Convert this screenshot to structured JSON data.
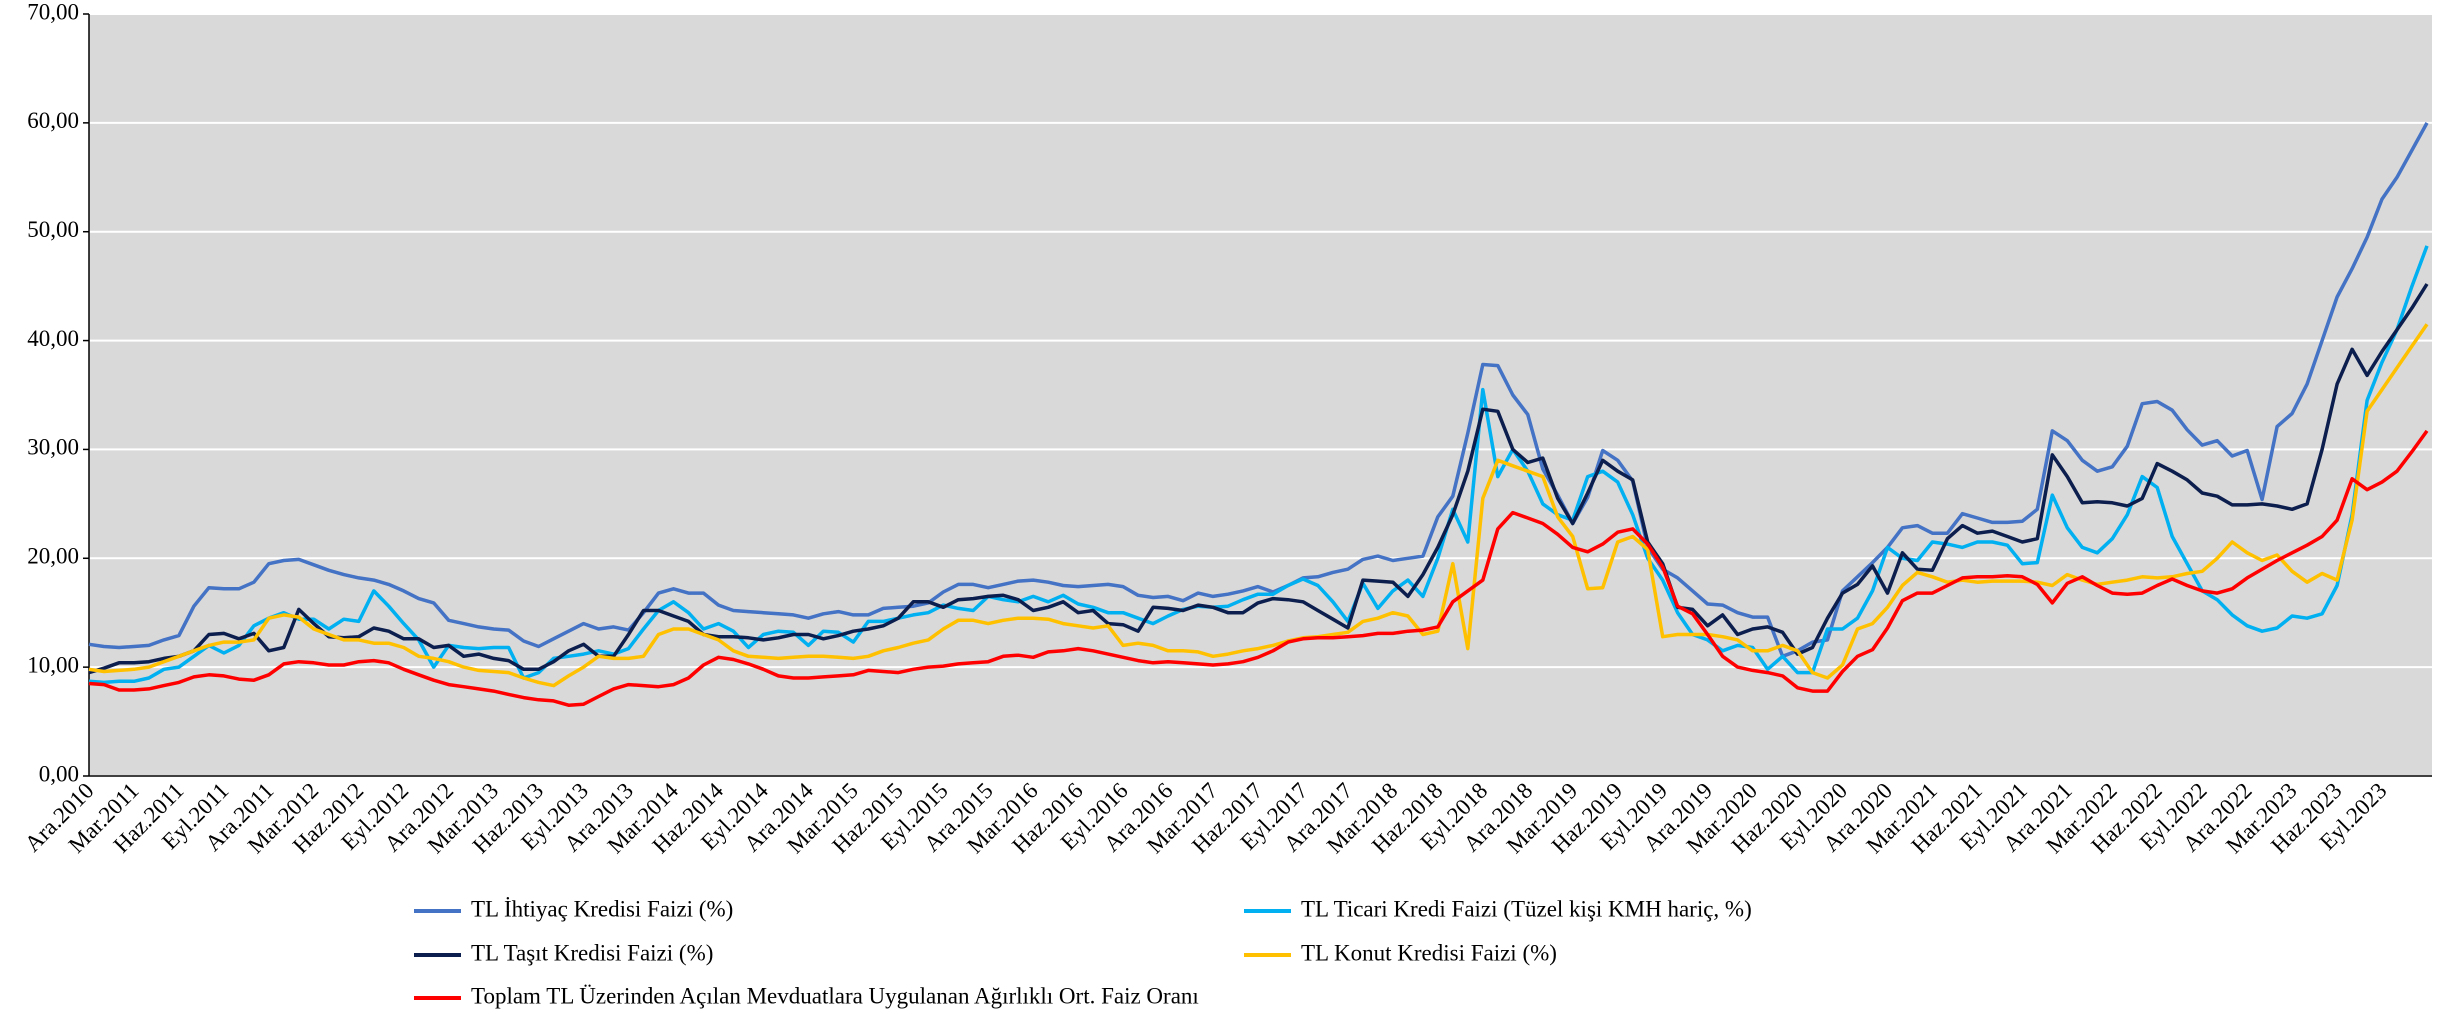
{
  "chart_data": {
    "type": "line",
    "categories": [
      "Ara.2010",
      null,
      null,
      "Mar.2011",
      null,
      null,
      "Haz.2011",
      null,
      null,
      "Eyl.2011",
      null,
      null,
      "Ara.2011",
      null,
      null,
      "Mar.2012",
      null,
      null,
      "Haz.2012",
      null,
      null,
      "Eyl.2012",
      null,
      null,
      "Ara.2012",
      null,
      null,
      "Mar.2013",
      null,
      null,
      "Haz.2013",
      null,
      null,
      "Eyl.2013",
      null,
      null,
      "Ara.2013",
      null,
      null,
      "Mar.2014",
      null,
      null,
      "Haz.2014",
      null,
      null,
      "Eyl.2014",
      null,
      null,
      "Ara.2014",
      null,
      null,
      "Mar.2015",
      null,
      null,
      "Haz.2015",
      null,
      null,
      "Eyl.2015",
      null,
      null,
      "Ara.2015",
      null,
      null,
      "Mar.2016",
      null,
      null,
      "Haz.2016",
      null,
      null,
      "Eyl.2016",
      null,
      null,
      "Ara.2016",
      null,
      null,
      "Mar.2017",
      null,
      null,
      "Haz.2017",
      null,
      null,
      "Eyl.2017",
      null,
      null,
      "Ara.2017",
      null,
      null,
      "Mar.2018",
      null,
      null,
      "Haz.2018",
      null,
      null,
      "Eyl.2018",
      null,
      null,
      "Ara.2018",
      null,
      null,
      "Mar.2019",
      null,
      null,
      "Haz.2019",
      null,
      null,
      "Eyl.2019",
      null,
      null,
      "Ara.2019",
      null,
      null,
      "Mar.2020",
      null,
      null,
      "Haz.2020",
      null,
      null,
      "Eyl.2020",
      null,
      null,
      "Ara.2020",
      null,
      null,
      "Mar.2021",
      null,
      null,
      "Haz.2021",
      null,
      null,
      "Eyl.2021",
      null,
      null,
      "Ara.2021",
      null,
      null,
      "Mar.2022",
      null,
      null,
      "Haz.2022",
      null,
      null,
      "Eyl.2022",
      null,
      null,
      "Ara.2022",
      null,
      null,
      "Mar.2023",
      null,
      null,
      "Haz.2023",
      null,
      null,
      "Eyl.2023",
      null,
      null,
      null
    ],
    "series": [
      {
        "name": "TL İhtiyaç Kredisi Faizi (%)",
        "color": "#4472C4",
        "values": [
          12.1,
          11.9,
          11.8,
          11.9,
          12.0,
          12.5,
          12.9,
          15.6,
          17.3,
          17.2,
          17.2,
          17.8,
          19.5,
          19.8,
          19.9,
          19.4,
          18.9,
          18.5,
          18.2,
          18.0,
          17.6,
          17.0,
          16.3,
          15.9,
          14.3,
          14.0,
          13.7,
          13.5,
          13.4,
          12.4,
          11.9,
          12.6,
          13.3,
          14.0,
          13.5,
          13.7,
          13.4,
          15.0,
          16.8,
          17.2,
          16.8,
          16.8,
          15.7,
          15.2,
          15.1,
          15.0,
          14.9,
          14.8,
          14.5,
          14.9,
          15.1,
          14.8,
          14.8,
          15.4,
          15.5,
          15.6,
          15.9,
          16.9,
          17.6,
          17.6,
          17.3,
          17.6,
          17.9,
          18.0,
          17.8,
          17.5,
          17.4,
          17.5,
          17.6,
          17.4,
          16.6,
          16.4,
          16.5,
          16.1,
          16.8,
          16.5,
          16.7,
          17.0,
          17.4,
          16.9,
          17.5,
          18.2,
          18.3,
          18.7,
          19.0,
          19.9,
          20.2,
          19.8,
          20.0,
          20.2,
          23.8,
          25.7,
          31.5,
          37.8,
          37.7,
          35.0,
          33.2,
          28.2,
          25.8,
          23.2,
          25.6,
          29.9,
          29.0,
          27.1,
          21.0,
          19.0,
          18.2,
          17.0,
          15.8,
          15.7,
          15.0,
          14.6,
          14.6,
          11.0,
          11.5,
          12.3,
          12.5,
          17.0,
          18.3,
          19.6,
          21.0,
          22.8,
          23.0,
          22.3,
          22.3,
          24.1,
          23.7,
          23.3,
          23.3,
          23.4,
          24.5,
          31.7,
          30.8,
          29.0,
          28.0,
          28.4,
          30.3,
          34.2,
          34.4,
          33.6,
          31.8,
          30.4,
          30.8,
          29.4,
          29.9,
          25.4,
          32.1,
          33.3,
          36.0,
          40.0,
          44.0,
          46.6,
          49.5,
          53.0,
          55.0,
          57.5,
          60.0
        ]
      },
      {
        "name": "TL Ticari Kredi Faizi (Tüzel kişi KMH hariç, %)",
        "color": "#00B0F0",
        "values": [
          8.7,
          8.6,
          8.7,
          8.7,
          9.0,
          9.8,
          10.0,
          11.0,
          12.0,
          11.3,
          12.0,
          13.8,
          14.5,
          15.0,
          14.4,
          14.4,
          13.5,
          14.4,
          14.2,
          17.0,
          15.6,
          14.0,
          12.5,
          10.0,
          12.0,
          11.8,
          11.7,
          11.8,
          11.8,
          9.0,
          9.5,
          10.8,
          11.0,
          11.2,
          11.5,
          11.2,
          11.7,
          13.5,
          15.2,
          16.0,
          15.0,
          13.5,
          14.0,
          13.3,
          11.8,
          13.0,
          13.3,
          13.2,
          12.0,
          13.3,
          13.2,
          12.3,
          14.2,
          14.2,
          14.5,
          14.8,
          15.0,
          15.7,
          15.4,
          15.2,
          16.5,
          16.2,
          16.0,
          16.5,
          16.0,
          16.6,
          15.8,
          15.5,
          15.0,
          15.0,
          14.5,
          14.0,
          14.7,
          15.3,
          15.6,
          15.5,
          15.6,
          16.2,
          16.7,
          16.7,
          17.5,
          18.1,
          17.5,
          16.0,
          14.2,
          17.7,
          15.4,
          17.0,
          18.0,
          16.5,
          20.0,
          24.5,
          21.5,
          35.5,
          27.5,
          30.0,
          28.0,
          25.0,
          24.0,
          23.5,
          27.5,
          28.0,
          27.0,
          24.0,
          20.0,
          18.0,
          15.0,
          13.0,
          12.5,
          11.5,
          12.0,
          11.8,
          9.8,
          11.0,
          9.5,
          9.5,
          13.5,
          13.5,
          14.5,
          17.0,
          21.0,
          20.0,
          19.8,
          21.5,
          21.3,
          21.0,
          21.5,
          21.5,
          21.2,
          19.5,
          19.6,
          25.8,
          22.8,
          21.0,
          20.5,
          21.8,
          24.0,
          27.5,
          26.5,
          22.0,
          19.5,
          17.0,
          16.2,
          14.8,
          13.8,
          13.3,
          13.6,
          14.7,
          14.5,
          14.9,
          17.5,
          24.0,
          34.5,
          38.0,
          41.0,
          45.0,
          48.7
        ]
      },
      {
        "name": "TL Taşıt Kredisi Faizi (%)",
        "color": "#0C1E4D",
        "values": [
          9.5,
          9.9,
          10.4,
          10.4,
          10.5,
          10.8,
          11.0,
          11.5,
          13.0,
          13.1,
          12.6,
          13.1,
          11.5,
          11.8,
          15.3,
          14.0,
          12.8,
          12.7,
          12.8,
          13.6,
          13.3,
          12.6,
          12.6,
          11.8,
          12.0,
          11.0,
          11.2,
          10.8,
          10.6,
          9.8,
          9.8,
          10.5,
          11.5,
          12.1,
          11.0,
          11.0,
          13.0,
          15.2,
          15.2,
          14.7,
          14.2,
          13.0,
          12.8,
          12.8,
          12.7,
          12.5,
          12.7,
          13.0,
          13.0,
          12.6,
          12.9,
          13.3,
          13.5,
          13.8,
          14.5,
          16.0,
          16.0,
          15.5,
          16.2,
          16.3,
          16.5,
          16.6,
          16.2,
          15.2,
          15.5,
          16.0,
          15.0,
          15.2,
          14.0,
          13.9,
          13.3,
          15.5,
          15.4,
          15.2,
          15.7,
          15.5,
          15.0,
          15.0,
          15.9,
          16.3,
          16.2,
          16.0,
          15.2,
          14.4,
          13.6,
          18.0,
          17.9,
          17.8,
          16.5,
          18.5,
          21.0,
          24.0,
          28.0,
          33.7,
          33.5,
          30.0,
          28.8,
          29.2,
          25.5,
          23.2,
          26.0,
          29.0,
          28.0,
          27.2,
          21.5,
          19.5,
          15.5,
          15.3,
          13.8,
          14.8,
          13.0,
          13.5,
          13.7,
          13.2,
          11.2,
          11.8,
          14.5,
          16.8,
          17.6,
          19.3,
          16.8,
          20.5,
          19.0,
          18.9,
          21.8,
          23.0,
          22.3,
          22.5,
          22.0,
          21.5,
          21.8,
          29.5,
          27.5,
          25.1,
          25.2,
          25.1,
          24.8,
          25.5,
          28.7,
          28.0,
          27.2,
          26.0,
          25.7,
          24.9,
          24.9,
          25.0,
          24.8,
          24.5,
          25.0,
          30.0,
          36.0,
          39.2,
          36.8,
          39.0,
          41.0,
          43.0,
          45.2
        ]
      },
      {
        "name": "TL Konut Kredisi Faizi (%)",
        "color": "#FFC000",
        "values": [
          9.8,
          9.6,
          9.7,
          9.8,
          10.0,
          10.5,
          11.0,
          11.5,
          12.0,
          12.3,
          12.3,
          12.5,
          14.5,
          14.8,
          14.6,
          13.5,
          13.0,
          12.5,
          12.5,
          12.2,
          12.2,
          11.8,
          11.0,
          10.8,
          10.5,
          10.0,
          9.7,
          9.6,
          9.5,
          9.0,
          8.6,
          8.3,
          9.2,
          10.0,
          11.0,
          10.8,
          10.8,
          11.0,
          13.0,
          13.5,
          13.5,
          13.0,
          12.5,
          11.5,
          11.0,
          10.9,
          10.8,
          10.9,
          11.0,
          11.0,
          10.9,
          10.8,
          11.0,
          11.5,
          11.8,
          12.2,
          12.5,
          13.5,
          14.3,
          14.3,
          14.0,
          14.3,
          14.5,
          14.5,
          14.4,
          14.0,
          13.8,
          13.6,
          13.8,
          12.0,
          12.2,
          12.0,
          11.5,
          11.5,
          11.4,
          11.0,
          11.2,
          11.5,
          11.7,
          12.0,
          12.4,
          12.7,
          12.8,
          13.0,
          13.2,
          14.2,
          14.5,
          15.0,
          14.7,
          13.0,
          13.3,
          19.5,
          11.7,
          25.5,
          29.0,
          28.5,
          28.0,
          27.5,
          23.8,
          22.0,
          17.2,
          17.3,
          21.5,
          22.0,
          20.8,
          12.8,
          13.0,
          13.0,
          13.0,
          12.8,
          12.5,
          11.5,
          11.5,
          12.0,
          11.5,
          9.5,
          9.0,
          10.2,
          13.5,
          14.0,
          15.5,
          17.5,
          18.7,
          18.3,
          17.8,
          18.0,
          17.8,
          17.9,
          17.9,
          17.9,
          17.8,
          17.5,
          18.5,
          18.0,
          17.6,
          17.8,
          18.0,
          18.3,
          18.2,
          18.3,
          18.6,
          18.8,
          20.0,
          21.5,
          20.5,
          19.8,
          20.3,
          18.8,
          17.8,
          18.6,
          18.0,
          23.5,
          33.5,
          35.5,
          37.5,
          39.5,
          41.5
        ]
      },
      {
        "name": "Toplam TL Üzerinden Açılan Mevduatlara Uygulanan Ağırlıklı Ort. Faiz Oranı",
        "color": "#FF0000",
        "values": [
          8.5,
          8.4,
          7.9,
          7.9,
          8.0,
          8.3,
          8.6,
          9.1,
          9.3,
          9.2,
          8.9,
          8.8,
          9.3,
          10.3,
          10.5,
          10.4,
          10.2,
          10.2,
          10.5,
          10.6,
          10.4,
          9.8,
          9.3,
          8.8,
          8.4,
          8.2,
          8.0,
          7.8,
          7.5,
          7.2,
          7.0,
          6.9,
          6.5,
          6.6,
          7.3,
          8.0,
          8.4,
          8.3,
          8.2,
          8.4,
          9.0,
          10.2,
          10.9,
          10.7,
          10.3,
          9.8,
          9.2,
          9.0,
          9.0,
          9.1,
          9.2,
          9.3,
          9.7,
          9.6,
          9.5,
          9.8,
          10.0,
          10.1,
          10.3,
          10.4,
          10.5,
          11.0,
          11.1,
          10.9,
          11.4,
          11.5,
          11.7,
          11.5,
          11.2,
          10.9,
          10.6,
          10.4,
          10.5,
          10.4,
          10.3,
          10.2,
          10.3,
          10.5,
          10.9,
          11.5,
          12.3,
          12.6,
          12.7,
          12.7,
          12.8,
          12.9,
          13.1,
          13.1,
          13.3,
          13.4,
          13.7,
          16.0,
          17.0,
          18.0,
          22.7,
          24.2,
          23.7,
          23.2,
          22.2,
          21.0,
          20.6,
          21.3,
          22.4,
          22.7,
          21.3,
          19.2,
          15.6,
          14.9,
          13.0,
          11.0,
          10.0,
          9.7,
          9.5,
          9.2,
          8.1,
          7.8,
          7.8,
          9.6,
          11.0,
          11.6,
          13.6,
          16.1,
          16.8,
          16.8,
          17.5,
          18.2,
          18.3,
          18.3,
          18.4,
          18.3,
          17.6,
          15.9,
          17.7,
          18.3,
          17.5,
          16.8,
          16.7,
          16.8,
          17.5,
          18.1,
          17.5,
          17.0,
          16.8,
          17.2,
          18.2,
          19.0,
          19.8,
          20.5,
          21.2,
          22.0,
          23.5,
          27.3,
          26.3,
          27.0,
          28.0,
          29.8,
          31.7
        ]
      }
    ],
    "ylim": [
      0,
      70
    ],
    "yticks": [
      {
        "value": 0,
        "label": "0,00"
      },
      {
        "value": 10,
        "label": "10,00"
      },
      {
        "value": 20,
        "label": "20,00"
      },
      {
        "value": 30,
        "label": "30,00"
      },
      {
        "value": 40,
        "label": "40,00"
      },
      {
        "value": 50,
        "label": "50,00"
      },
      {
        "value": 60,
        "label": "60,00"
      },
      {
        "value": 70,
        "label": "70,00"
      }
    ],
    "grid": true,
    "legend": "bottom"
  }
}
